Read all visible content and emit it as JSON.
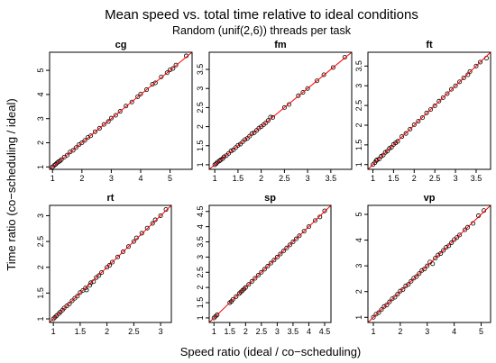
{
  "figure": {
    "title": "Mean speed vs. total time relative to ideal conditions",
    "subtitle": "Random (unif(2,6)) threads per task",
    "xlabel": "Speed ratio (ideal / co−scheduling)",
    "ylabel": "Time ratio (co−scheduling / ideal)"
  },
  "colors": {
    "points": "#000000",
    "identity_line": "#ff0000",
    "frame": "#000000",
    "background": "#ffffff"
  },
  "chart_data": [
    {
      "type": "scatter",
      "title": "cg",
      "xlim": [
        0.9,
        5.75
      ],
      "ylim": [
        0.9,
        5.75
      ],
      "xticks": [
        1,
        2,
        3,
        4,
        5
      ],
      "yticks": [
        1,
        2,
        3,
        4,
        5
      ],
      "identity_line": true,
      "x": [
        1.0,
        1.05,
        1.1,
        1.15,
        1.2,
        1.25,
        1.3,
        1.4,
        1.5,
        1.6,
        1.7,
        1.8,
        1.9,
        2.0,
        2.1,
        2.2,
        2.3,
        2.45,
        2.6,
        2.75,
        2.9,
        3.0,
        3.15,
        3.3,
        3.5,
        3.7,
        3.9,
        4.0,
        4.2,
        4.4,
        4.5,
        4.7,
        4.9,
        5.0,
        5.1,
        5.2,
        5.55
      ],
      "y": [
        1.0,
        1.06,
        1.1,
        1.16,
        1.21,
        1.24,
        1.3,
        1.41,
        1.49,
        1.62,
        1.69,
        1.8,
        1.92,
        2.0,
        2.1,
        2.22,
        2.29,
        2.46,
        2.6,
        2.76,
        2.88,
        3.02,
        3.14,
        3.3,
        3.52,
        3.69,
        3.91,
        4.02,
        4.2,
        4.42,
        4.48,
        4.73,
        4.9,
        5.02,
        5.08,
        5.22,
        5.6
      ]
    },
    {
      "type": "scatter",
      "title": "fm",
      "xlim": [
        0.88,
        3.95
      ],
      "ylim": [
        0.88,
        3.95
      ],
      "xticks": [
        1.0,
        1.5,
        2.0,
        2.5,
        3.0,
        3.5
      ],
      "yticks": [
        1.0,
        1.5,
        2.0,
        2.5,
        3.0,
        3.5
      ],
      "identity_line": true,
      "x": [
        1.0,
        1.03,
        1.06,
        1.1,
        1.13,
        1.17,
        1.2,
        1.25,
        1.3,
        1.35,
        1.4,
        1.45,
        1.5,
        1.55,
        1.6,
        1.65,
        1.7,
        1.75,
        1.8,
        1.85,
        1.9,
        1.95,
        2.0,
        2.05,
        2.1,
        2.15,
        2.2,
        2.25,
        2.5,
        2.6,
        2.8,
        2.9,
        3.0,
        3.2,
        3.35,
        3.55,
        3.8
      ],
      "y": [
        1.0,
        1.03,
        1.07,
        1.1,
        1.13,
        1.16,
        1.21,
        1.24,
        1.3,
        1.36,
        1.39,
        1.45,
        1.51,
        1.54,
        1.6,
        1.66,
        1.69,
        1.75,
        1.82,
        1.84,
        1.9,
        1.96,
        2.0,
        2.05,
        2.1,
        2.16,
        2.25,
        2.24,
        2.5,
        2.58,
        2.81,
        2.9,
        3.0,
        3.2,
        3.36,
        3.55,
        3.82
      ]
    },
    {
      "type": "scatter",
      "title": "ft",
      "xlim": [
        0.88,
        3.85
      ],
      "ylim": [
        0.88,
        3.85
      ],
      "xticks": [
        1.0,
        1.5,
        2.0,
        2.5,
        3.0,
        3.5
      ],
      "yticks": [
        1.0,
        1.5,
        2.0,
        2.5,
        3.0,
        3.5
      ],
      "identity_line": true,
      "x": [
        1.0,
        1.05,
        1.08,
        1.1,
        1.15,
        1.2,
        1.25,
        1.3,
        1.35,
        1.4,
        1.45,
        1.5,
        1.55,
        1.6,
        1.7,
        1.8,
        1.9,
        2.0,
        2.1,
        2.2,
        2.3,
        2.4,
        2.5,
        2.6,
        2.7,
        2.8,
        2.9,
        3.0,
        3.1,
        3.2,
        3.3,
        3.35,
        3.5,
        3.6,
        3.75
      ],
      "y": [
        1.0,
        1.05,
        1.1,
        1.12,
        1.14,
        1.21,
        1.24,
        1.31,
        1.34,
        1.41,
        1.44,
        1.51,
        1.55,
        1.59,
        1.71,
        1.79,
        1.9,
        2.01,
        2.1,
        2.19,
        2.31,
        2.4,
        2.49,
        2.61,
        2.7,
        2.8,
        2.91,
        3.0,
        3.1,
        3.2,
        3.28,
        3.36,
        3.5,
        3.6,
        3.7
      ]
    },
    {
      "type": "scatter",
      "title": "rt",
      "xlim": [
        0.93,
        3.2
      ],
      "ylim": [
        0.93,
        3.2
      ],
      "xticks": [
        1.0,
        1.5,
        2.0,
        2.5,
        3.0
      ],
      "yticks": [
        1.0,
        1.5,
        2.0,
        2.5,
        3.0
      ],
      "identity_line": true,
      "x": [
        1.0,
        1.03,
        1.06,
        1.1,
        1.13,
        1.17,
        1.2,
        1.25,
        1.3,
        1.35,
        1.4,
        1.45,
        1.5,
        1.55,
        1.6,
        1.62,
        1.68,
        1.7,
        1.75,
        1.8,
        1.85,
        1.9,
        2.0,
        2.05,
        2.1,
        2.2,
        2.3,
        2.4,
        2.5,
        2.55,
        2.65,
        2.75,
        2.85,
        2.9,
        3.0,
        3.1
      ],
      "y": [
        1.0,
        1.03,
        1.06,
        1.1,
        1.13,
        1.17,
        1.21,
        1.25,
        1.29,
        1.35,
        1.4,
        1.44,
        1.51,
        1.55,
        1.6,
        1.56,
        1.65,
        1.7,
        1.72,
        1.8,
        1.84,
        1.9,
        2.0,
        2.04,
        2.1,
        2.2,
        2.3,
        2.4,
        2.5,
        2.57,
        2.66,
        2.76,
        2.85,
        2.92,
        3.0,
        3.12
      ]
    },
    {
      "type": "scatter",
      "title": "sp",
      "xlim": [
        0.85,
        4.7
      ],
      "ylim": [
        0.85,
        4.7
      ],
      "xticks": [
        1.0,
        1.5,
        2.0,
        2.5,
        3.0,
        3.5,
        4.0,
        4.5
      ],
      "yticks": [
        1.0,
        1.5,
        2.0,
        2.5,
        3.0,
        3.5,
        4.0,
        4.5
      ],
      "identity_line": true,
      "x": [
        1.0,
        1.05,
        1.1,
        1.5,
        1.55,
        1.6,
        1.7,
        1.8,
        1.85,
        1.9,
        1.95,
        2.0,
        2.1,
        2.2,
        2.3,
        2.4,
        2.5,
        2.6,
        2.7,
        2.8,
        2.9,
        3.0,
        3.1,
        3.2,
        3.3,
        3.4,
        3.5,
        3.6,
        3.7,
        3.85,
        4.0,
        4.2,
        4.35,
        4.5
      ],
      "y": [
        1.0,
        1.05,
        1.1,
        1.5,
        1.54,
        1.61,
        1.7,
        1.8,
        1.85,
        1.9,
        1.95,
        2.0,
        2.1,
        2.2,
        2.3,
        2.4,
        2.5,
        2.6,
        2.7,
        2.8,
        2.9,
        3.0,
        3.1,
        3.2,
        3.3,
        3.4,
        3.5,
        3.6,
        3.7,
        3.85,
        4.0,
        4.2,
        4.32,
        4.52
      ]
    },
    {
      "type": "scatter",
      "title": "vp",
      "xlim": [
        0.8,
        5.35
      ],
      "ylim": [
        0.8,
        5.35
      ],
      "xticks": [
        1,
        2,
        3,
        4,
        5
      ],
      "yticks": [
        1,
        2,
        3,
        4,
        5
      ],
      "identity_line": true,
      "x": [
        1.0,
        1.1,
        1.2,
        1.3,
        1.4,
        1.5,
        1.6,
        1.7,
        1.8,
        1.9,
        2.0,
        2.1,
        2.2,
        2.3,
        2.4,
        2.5,
        2.6,
        2.7,
        2.8,
        2.9,
        3.0,
        3.1,
        3.2,
        3.3,
        3.4,
        3.5,
        3.6,
        3.7,
        3.8,
        3.9,
        4.0,
        4.1,
        4.2,
        4.4,
        4.5,
        4.7,
        4.9,
        5.1
      ],
      "y": [
        1.0,
        1.12,
        1.18,
        1.3,
        1.42,
        1.48,
        1.6,
        1.72,
        1.78,
        1.9,
        2.02,
        2.08,
        2.22,
        2.28,
        2.4,
        2.52,
        2.58,
        2.7,
        2.82,
        2.88,
        3.0,
        3.15,
        3.08,
        3.3,
        3.42,
        3.48,
        3.6,
        3.72,
        3.78,
        3.9,
        4.02,
        4.1,
        4.2,
        4.4,
        4.5,
        4.65,
        4.95,
        5.15
      ]
    }
  ]
}
